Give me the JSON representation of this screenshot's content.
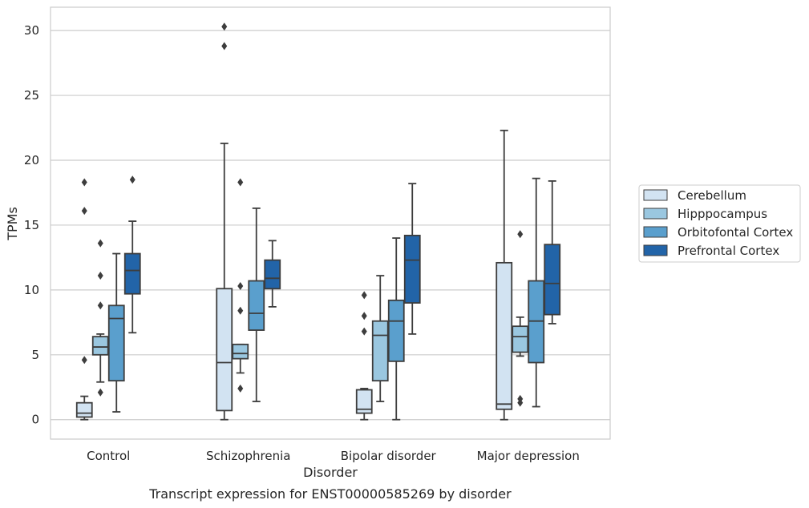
{
  "chart_data": {
    "type": "box",
    "title": "",
    "caption": "Transcript expression for ENST00000585269 by disorder",
    "xlabel": "Disorder",
    "ylabel": "TPMs",
    "ylim": [
      -1.5,
      31.8
    ],
    "yticks": [
      0,
      5,
      10,
      15,
      20,
      25,
      30
    ],
    "grid": true,
    "legend_position": "right",
    "categories": [
      "Control",
      "Schizophrenia",
      "Bipolar disorder",
      "Major depression"
    ],
    "series": [
      {
        "name": "Cerebellum",
        "color": "#d2e3f2",
        "boxes": [
          {
            "whisker_low": 0.0,
            "q1": 0.2,
            "median": 0.5,
            "q3": 1.3,
            "whisker_high": 1.8,
            "outliers": [
              4.6,
              16.1,
              18.3
            ]
          },
          {
            "whisker_low": 0.0,
            "q1": 0.7,
            "median": 4.4,
            "q3": 10.1,
            "whisker_high": 21.3,
            "outliers": [
              28.8,
              30.3
            ]
          },
          {
            "whisker_low": 0.0,
            "q1": 0.5,
            "median": 0.8,
            "q3": 2.3,
            "whisker_high": 2.4,
            "outliers": [
              6.8,
              8.0,
              9.6
            ]
          },
          {
            "whisker_low": 0.0,
            "q1": 0.8,
            "median": 1.2,
            "q3": 12.1,
            "whisker_high": 22.3,
            "outliers": []
          }
        ]
      },
      {
        "name": "Hipppocampus",
        "color": "#9ac7e0",
        "boxes": [
          {
            "whisker_low": 2.9,
            "q1": 5.0,
            "median": 5.6,
            "q3": 6.4,
            "whisker_high": 6.6,
            "outliers": [
              2.1,
              8.8,
              11.1,
              13.6
            ]
          },
          {
            "whisker_low": 3.6,
            "q1": 4.7,
            "median": 5.1,
            "q3": 5.8,
            "whisker_high": 5.8,
            "outliers": [
              2.4,
              8.4,
              10.3,
              18.3
            ]
          },
          {
            "whisker_low": 1.4,
            "q1": 3.0,
            "median": 6.5,
            "q3": 7.6,
            "whisker_high": 11.1,
            "outliers": []
          },
          {
            "whisker_low": 4.9,
            "q1": 5.2,
            "median": 6.4,
            "q3": 7.2,
            "whisker_high": 7.9,
            "outliers": [
              1.3,
              1.6,
              14.3
            ]
          }
        ]
      },
      {
        "name": "Orbitofontal Cortex",
        "color": "#5a9fcd",
        "boxes": [
          {
            "whisker_low": 0.6,
            "q1": 3.0,
            "median": 7.8,
            "q3": 8.8,
            "whisker_high": 12.8,
            "outliers": []
          },
          {
            "whisker_low": 1.4,
            "q1": 6.9,
            "median": 8.2,
            "q3": 10.7,
            "whisker_high": 16.3,
            "outliers": []
          },
          {
            "whisker_low": 0.0,
            "q1": 4.5,
            "median": 7.6,
            "q3": 9.2,
            "whisker_high": 14.0,
            "outliers": []
          },
          {
            "whisker_low": 1.0,
            "q1": 4.4,
            "median": 7.6,
            "q3": 10.7,
            "whisker_high": 18.6,
            "outliers": []
          }
        ]
      },
      {
        "name": "Prefrontal Cortex",
        "color": "#2264a8",
        "boxes": [
          {
            "whisker_low": 6.7,
            "q1": 9.7,
            "median": 11.5,
            "q3": 12.8,
            "whisker_high": 15.3,
            "outliers": [
              18.5
            ]
          },
          {
            "whisker_low": 8.7,
            "q1": 10.1,
            "median": 10.9,
            "q3": 12.3,
            "whisker_high": 13.8,
            "outliers": []
          },
          {
            "whisker_low": 6.6,
            "q1": 9.0,
            "median": 12.3,
            "q3": 14.2,
            "whisker_high": 18.2,
            "outliers": []
          },
          {
            "whisker_low": 7.4,
            "q1": 8.1,
            "median": 10.5,
            "q3": 13.5,
            "whisker_high": 18.4,
            "outliers": []
          }
        ]
      }
    ]
  }
}
